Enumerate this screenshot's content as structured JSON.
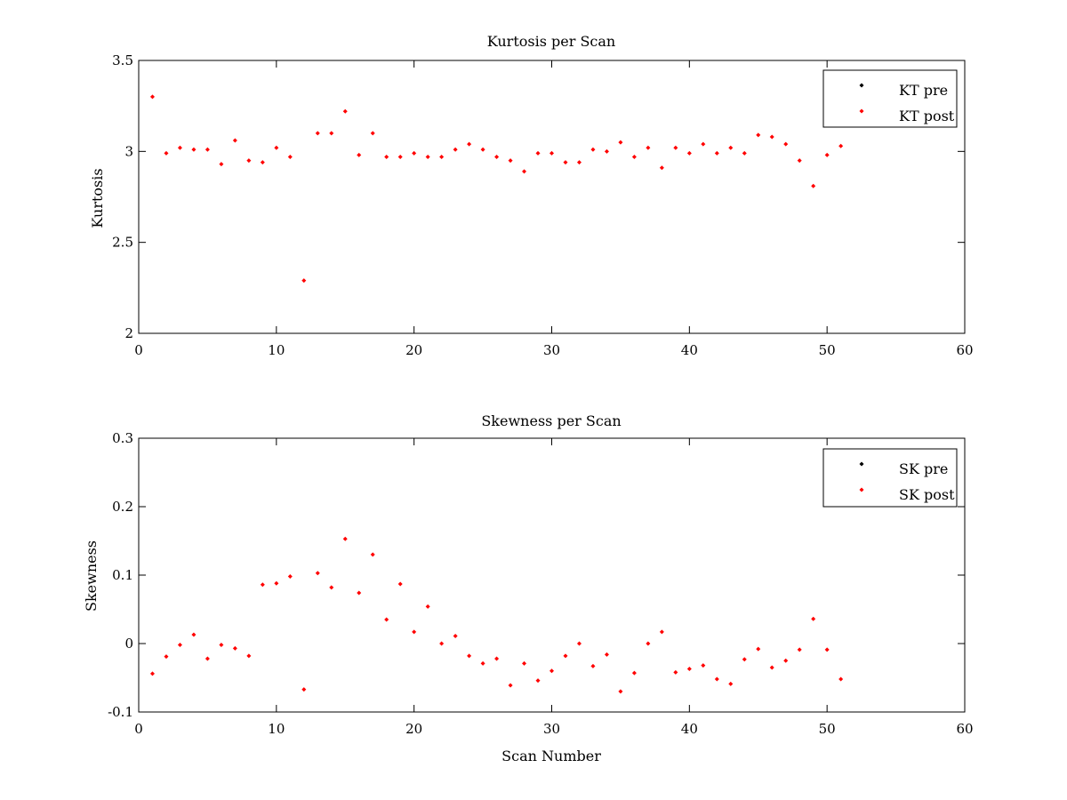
{
  "figure": {
    "background": "#ffffff"
  },
  "chart_data": [
    {
      "type": "scatter",
      "title": "Kurtosis per Scan",
      "xlabel": "",
      "ylabel": "Kurtosis",
      "xlim": [
        0,
        60
      ],
      "ylim": [
        2,
        3.5
      ],
      "xticks": [
        0,
        10,
        20,
        30,
        40,
        50,
        60
      ],
      "yticks": [
        2,
        2.5,
        3,
        3.5
      ],
      "xtick_labels": [
        "0",
        "10",
        "20",
        "30",
        "40",
        "50",
        "60"
      ],
      "ytick_labels": [
        "2",
        "2.5",
        "3",
        "3.5"
      ],
      "grid": false,
      "legend_position": "top-right",
      "series": [
        {
          "name": "KT pre",
          "color": "#000000",
          "marker": "diamond",
          "x": [],
          "y": []
        },
        {
          "name": "KT post",
          "color": "#ff0000",
          "marker": "diamond",
          "x": [
            1,
            2,
            3,
            4,
            5,
            6,
            7,
            8,
            9,
            10,
            11,
            12,
            13,
            14,
            15,
            16,
            17,
            18,
            19,
            20,
            21,
            22,
            23,
            24,
            25,
            26,
            27,
            28,
            29,
            30,
            31,
            32,
            33,
            34,
            35,
            36,
            37,
            38,
            39,
            40,
            41,
            42,
            43,
            44,
            45,
            46,
            47,
            48,
            49,
            50,
            51
          ],
          "y": [
            3.3,
            2.99,
            3.02,
            3.01,
            3.01,
            2.93,
            3.06,
            2.95,
            2.94,
            3.02,
            2.97,
            2.29,
            3.1,
            3.1,
            3.22,
            2.98,
            3.1,
            2.97,
            2.97,
            2.99,
            2.97,
            2.97,
            3.01,
            3.04,
            3.01,
            2.97,
            2.95,
            2.89,
            2.99,
            2.99,
            2.94,
            2.94,
            3.01,
            3.0,
            3.05,
            2.97,
            3.02,
            2.91,
            3.02,
            2.99,
            3.04,
            2.99,
            3.02,
            2.99,
            3.09,
            3.08,
            3.04,
            2.95,
            2.81,
            2.98,
            3.03
          ]
        }
      ]
    },
    {
      "type": "scatter",
      "title": "Skewness per Scan",
      "xlabel": "Scan Number",
      "ylabel": "Skewness",
      "xlim": [
        0,
        60
      ],
      "ylim": [
        -0.1,
        0.3
      ],
      "xticks": [
        0,
        10,
        20,
        30,
        40,
        50,
        60
      ],
      "yticks": [
        -0.1,
        0,
        0.1,
        0.2,
        0.3
      ],
      "xtick_labels": [
        "0",
        "10",
        "20",
        "30",
        "40",
        "50",
        "60"
      ],
      "ytick_labels": [
        "-0.1",
        "0",
        "0.1",
        "0.2",
        "0.3"
      ],
      "grid": false,
      "legend_position": "top-right",
      "series": [
        {
          "name": "SK pre",
          "color": "#000000",
          "marker": "diamond",
          "x": [],
          "y": []
        },
        {
          "name": "SK post",
          "color": "#ff0000",
          "marker": "diamond",
          "x": [
            1,
            2,
            3,
            4,
            5,
            6,
            7,
            8,
            9,
            10,
            11,
            12,
            13,
            14,
            15,
            16,
            17,
            18,
            19,
            20,
            21,
            22,
            23,
            24,
            25,
            26,
            27,
            28,
            29,
            30,
            31,
            32,
            33,
            34,
            35,
            36,
            37,
            38,
            39,
            40,
            41,
            42,
            43,
            44,
            45,
            46,
            47,
            48,
            49,
            50,
            51
          ],
          "y": [
            -0.044,
            -0.019,
            -0.002,
            0.013,
            -0.022,
            -0.002,
            -0.007,
            -0.018,
            0.086,
            0.088,
            0.098,
            -0.067,
            0.103,
            0.082,
            0.153,
            0.074,
            0.13,
            0.035,
            0.087,
            0.017,
            0.054,
            0.0,
            0.011,
            -0.018,
            -0.029,
            -0.022,
            -0.061,
            -0.029,
            -0.054,
            -0.04,
            -0.018,
            0.0,
            -0.033,
            -0.016,
            -0.07,
            -0.043,
            0.0,
            0.017,
            -0.042,
            -0.037,
            -0.032,
            -0.052,
            -0.059,
            -0.023,
            -0.008,
            -0.035,
            -0.025,
            -0.009,
            0.036,
            -0.009,
            -0.052
          ]
        }
      ]
    }
  ]
}
